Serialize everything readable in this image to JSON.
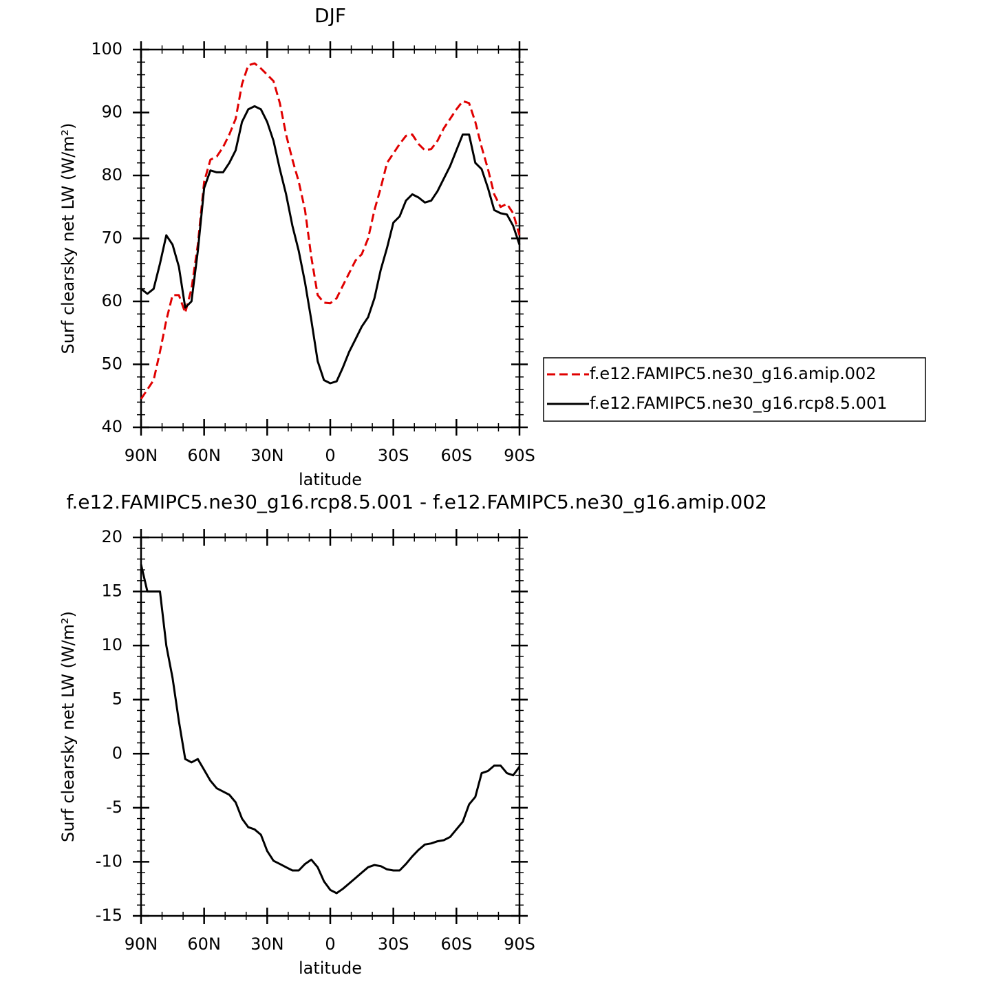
{
  "chart_data": [
    {
      "type": "line",
      "title": "DJF",
      "xlabel": "latitude",
      "ylabel": "Surf clearsky net LW (W/m²)",
      "x": [
        90,
        87,
        84,
        81,
        78,
        75,
        72,
        69,
        66,
        63,
        60,
        57,
        54,
        51,
        48,
        45,
        42,
        39,
        36,
        33,
        30,
        27,
        24,
        21,
        18,
        15,
        12,
        9,
        6,
        3,
        0,
        -3,
        -6,
        -9,
        -12,
        -15,
        -18,
        -21,
        -24,
        -27,
        -30,
        -33,
        -36,
        -39,
        -42,
        -45,
        -48,
        -51,
        -54,
        -57,
        -60,
        -63,
        -66,
        -69,
        -72,
        -75,
        -78,
        -81,
        -84,
        -87,
        -90
      ],
      "series": [
        {
          "name": "f.e12.FAMIPC5.ne30_g16.amip.002",
          "color": "#e00000",
          "line_style": "dashed",
          "values": [
            44.5,
            46,
            47.5,
            52,
            57,
            61,
            61,
            58.2,
            62,
            69,
            79,
            82.5,
            83,
            84.5,
            86.5,
            89,
            94.5,
            97.5,
            97.8,
            97,
            96,
            95,
            91.5,
            86.5,
            82.5,
            79,
            74.5,
            67,
            61,
            59.8,
            59.7,
            60.5,
            62.5,
            64.5,
            66.5,
            67.5,
            70,
            74.5,
            78,
            82,
            83.5,
            85,
            86.3,
            86.5,
            85,
            84,
            84.2,
            85.5,
            87.5,
            89,
            90.5,
            91.8,
            91.5,
            88.5,
            84.5,
            81,
            77,
            75,
            75.5,
            74,
            70.5
          ]
        },
        {
          "name": "f.e12.FAMIPC5.ne30_g16.rcp8.5.001",
          "color": "#000000",
          "line_style": "solid",
          "values": [
            62,
            61.2,
            62,
            66,
            70.5,
            69,
            65.5,
            59,
            60,
            68,
            78,
            80.8,
            80.5,
            80.5,
            82,
            84,
            88.5,
            90.5,
            91,
            90.5,
            88.5,
            85.5,
            81,
            77,
            72,
            68,
            63,
            57,
            50.5,
            47.5,
            47,
            47.3,
            49.5,
            52,
            54,
            56,
            57.5,
            60.5,
            65,
            68.5,
            72.5,
            73.5,
            76,
            77,
            76.5,
            75.7,
            76,
            77.5,
            79.5,
            81.5,
            84,
            86.5,
            86.5,
            82,
            81,
            78,
            74.5,
            74,
            73.8,
            72,
            69
          ]
        }
      ],
      "xlim": [
        90,
        -90
      ],
      "xticks": [
        {
          "value": 90,
          "label": "90N"
        },
        {
          "value": 60,
          "label": "60N"
        },
        {
          "value": 30,
          "label": "30N"
        },
        0,
        {
          "value": -30,
          "label": "30S"
        },
        {
          "value": -60,
          "label": "60S"
        },
        {
          "value": -90,
          "label": "90S"
        }
      ],
      "ylim": [
        40,
        100
      ],
      "yticks": [
        40,
        50,
        60,
        70,
        80,
        90,
        100
      ],
      "legend": "outside-right"
    },
    {
      "type": "line",
      "title": "f.e12.FAMIPC5.ne30_g16.rcp8.5.001 - f.e12.FAMIPC5.ne30_g16.amip.002",
      "xlabel": "latitude",
      "ylabel": "Surf clearsky net LW (W/m²)",
      "x": [
        90,
        87,
        84,
        81,
        78,
        75,
        72,
        69,
        66,
        63,
        60,
        57,
        54,
        51,
        48,
        45,
        42,
        39,
        36,
        33,
        30,
        27,
        24,
        21,
        18,
        15,
        12,
        9,
        6,
        3,
        0,
        -3,
        -6,
        -9,
        -12,
        -15,
        -18,
        -21,
        -24,
        -27,
        -30,
        -33,
        -36,
        -39,
        -42,
        -45,
        -48,
        -51,
        -54,
        -57,
        -60,
        -63,
        -66,
        -69,
        -72,
        -75,
        -78,
        -81,
        -84,
        -87,
        -90
      ],
      "values": [
        17.5,
        15,
        15,
        15,
        10,
        7,
        3,
        -0.5,
        -0.8,
        -0.5,
        -1.5,
        -2.5,
        -3.2,
        -3.5,
        -3.8,
        -4.5,
        -6,
        -6.8,
        -7,
        -7.5,
        -9,
        -9.9,
        -10.2,
        -10.5,
        -10.8,
        -10.8,
        -10.2,
        -9.8,
        -10.5,
        -11.8,
        -12.6,
        -12.9,
        -12.5,
        -12,
        -11.5,
        -11,
        -10.5,
        -10.3,
        -10.4,
        -10.7,
        -10.8,
        -10.8,
        -10.2,
        -9.5,
        -8.9,
        -8.4,
        -8.3,
        -8.1,
        -8,
        -7.7,
        -7,
        -6.3,
        -4.7,
        -4,
        -1.8,
        -1.6,
        -1.1,
        -1.1,
        -1.8,
        -2,
        -1.2
      ],
      "color": "#000000",
      "xlim": [
        90,
        -90
      ],
      "xticks": [
        {
          "value": 90,
          "label": "90N"
        },
        {
          "value": 60,
          "label": "60N"
        },
        {
          "value": 30,
          "label": "30N"
        },
        0,
        {
          "value": -30,
          "label": "30S"
        },
        {
          "value": -60,
          "label": "60S"
        },
        {
          "value": -90,
          "label": "90S"
        }
      ],
      "ylim": [
        -15,
        20
      ],
      "yticks": [
        -15,
        -10,
        -5,
        0,
        5,
        10,
        15,
        20
      ]
    }
  ]
}
